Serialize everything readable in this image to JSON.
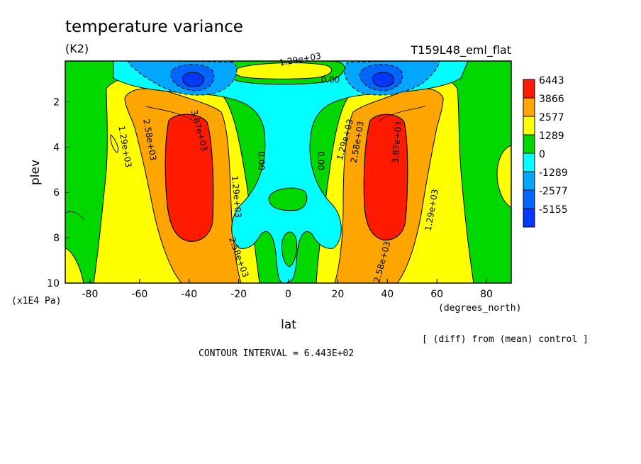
{
  "chart_data": {
    "type": "heatmap",
    "title": "temperature variance",
    "units": "(K2)",
    "experiment": "T159L48_eml_flat",
    "xlabel": "lat",
    "xunits": "(degrees_north)",
    "ylabel": "plev",
    "yunits": "(x1E4 Pa)",
    "xlim": [
      -90,
      90
    ],
    "ylim": [
      10,
      0.2
    ],
    "x_ticks": [
      -80,
      -60,
      -40,
      -20,
      0,
      20,
      40,
      60,
      80
    ],
    "y_ticks": [
      2,
      4,
      6,
      8,
      10
    ],
    "diff_note": "[ (diff) from (mean) control ]",
    "contour_interval": "CONTOUR INTERVAL = 6.443E+02",
    "colorbar": {
      "labels": [
        "6443",
        "3866",
        "2577",
        "1289",
        "0",
        "-1289",
        "-2577",
        "-5155"
      ],
      "colors": [
        "#ff1a00",
        "#ffa500",
        "#ffff00",
        "#00d800",
        "#00ffff",
        "#00a6ff",
        "#0066ff",
        "#0038ff"
      ]
    },
    "contour_labels": [
      {
        "text": "1.29e+03",
        "x": -67,
        "y": 4.0,
        "rot": 80
      },
      {
        "text": "2.58e+03",
        "x": -57,
        "y": 3.7,
        "rot": 80
      },
      {
        "text": "3.87e+03",
        "x": -37,
        "y": 3.3,
        "rot": 75
      },
      {
        "text": "1.29e+03",
        "x": -22,
        "y": 6.2,
        "rot": 85
      },
      {
        "text": "2.58e+03",
        "x": -21,
        "y": 8.9,
        "rot": 70
      },
      {
        "text": "0.00",
        "x": -12,
        "y": 4.6,
        "rot": 90
      },
      {
        "text": "0.00",
        "x": 12,
        "y": 4.6,
        "rot": 90
      },
      {
        "text": "1.29e+03",
        "x": 24,
        "y": 3.7,
        "rot": -75
      },
      {
        "text": "2.58e+03",
        "x": 29,
        "y": 3.8,
        "rot": -80
      },
      {
        "text": "3.87e+03",
        "x": 45,
        "y": 3.8,
        "rot": -85
      },
      {
        "text": "1.29e+03",
        "x": 59,
        "y": 6.8,
        "rot": -80
      },
      {
        "text": "2.58e+03",
        "x": 39,
        "y": 9.1,
        "rot": -75
      },
      {
        "text": "1.29e+03",
        "x": 5,
        "y": 0.25,
        "rot": -10
      },
      {
        "text": "0.00",
        "x": 17,
        "y": 1.15,
        "rot": 0
      }
    ]
  }
}
